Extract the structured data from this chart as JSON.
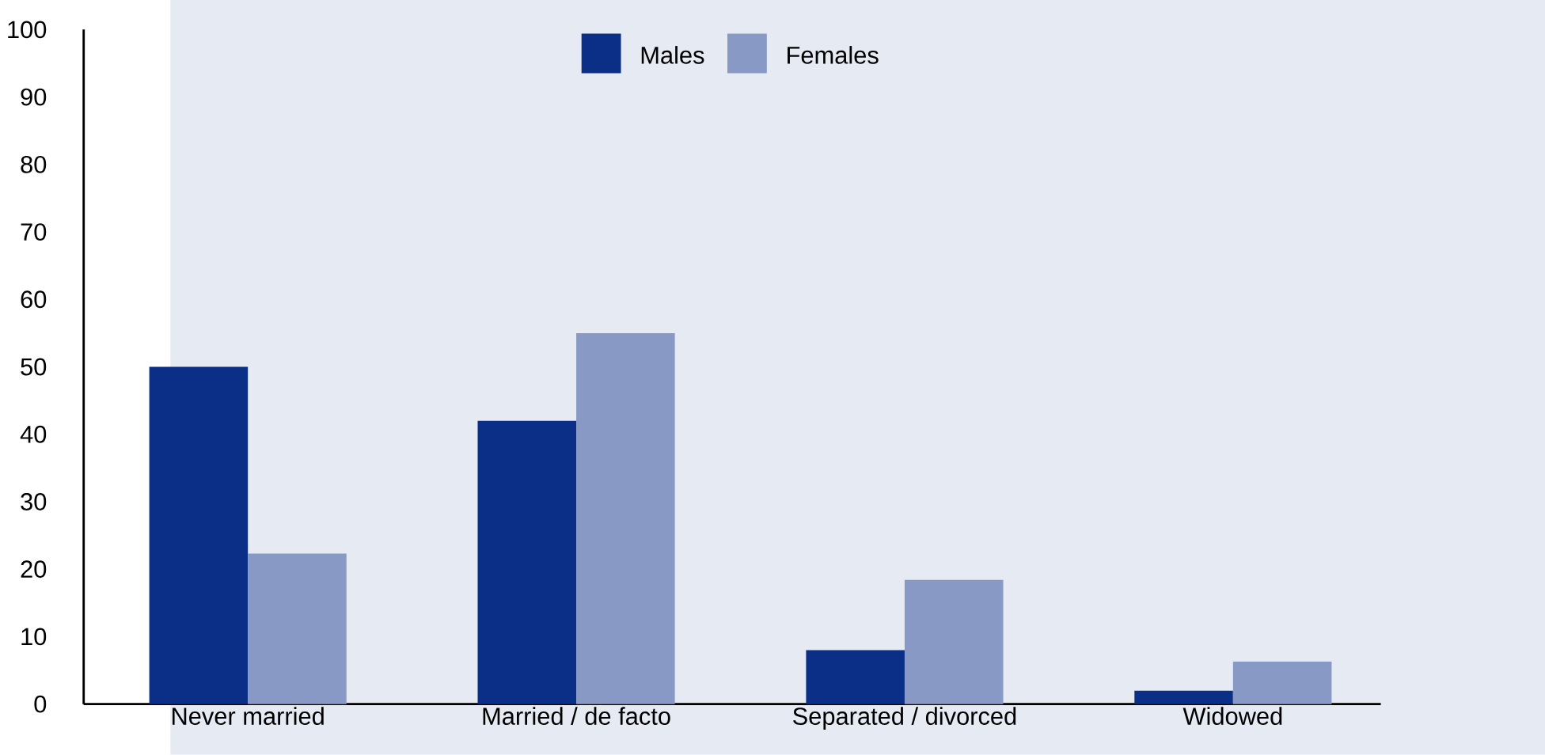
{
  "chart_data": {
    "type": "bar",
    "categories": [
      "Never married",
      "Married / de facto",
      "Separated / divorced",
      "Widowed"
    ],
    "series": [
      {
        "name": "Males",
        "color": "#0b2f86",
        "values": [
          50,
          42,
          8,
          2
        ]
      },
      {
        "name": "Females",
        "color": "#8799c4",
        "values": [
          22.3,
          55,
          18.4,
          6.3
        ]
      }
    ],
    "ylim": [
      0,
      100
    ],
    "yticks": [
      0,
      10,
      20,
      30,
      40,
      50,
      60,
      70,
      80,
      90,
      100
    ],
    "legend": "top",
    "grid": false
  }
}
